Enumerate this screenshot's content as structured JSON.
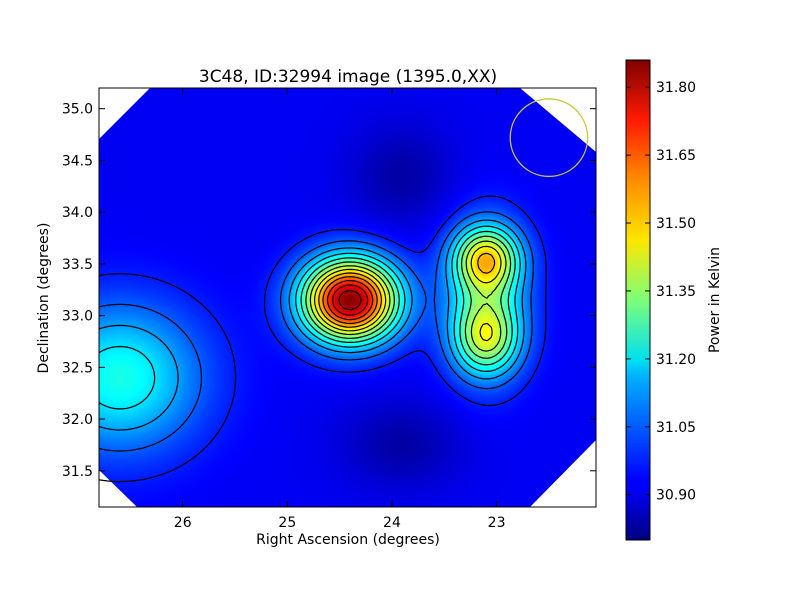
{
  "chart_data": {
    "type": "heatmap",
    "title": "3C48, ID:32994 image (1395.0,XX)",
    "xlabel": "Right Ascension (degrees)",
    "ylabel": "Declination (degrees)",
    "xlim": [
      26.8,
      22.05
    ],
    "ylim": [
      31.15,
      35.2
    ],
    "x_ticks": [
      26,
      25,
      24,
      23
    ],
    "x_tick_labels": [
      "26",
      "25",
      "24",
      "23"
    ],
    "y_ticks": [
      31.5,
      32.0,
      32.5,
      33.0,
      33.5,
      34.0,
      34.5,
      35.0
    ],
    "y_tick_labels": [
      "31.5",
      "32.0",
      "32.5",
      "33.0",
      "33.5",
      "34.0",
      "34.5",
      "35.0"
    ],
    "colorbar": {
      "label": "Power in Kelvin",
      "range": [
        30.8,
        31.86
      ],
      "ticks": [
        30.9,
        31.05,
        31.2,
        31.35,
        31.5,
        31.65,
        31.8
      ],
      "tick_labels": [
        "30.90",
        "31.05",
        "31.20",
        "31.35",
        "31.50",
        "31.65",
        "31.80"
      ],
      "colormap": "jet"
    },
    "features": [
      {
        "ra": 24.4,
        "dec": 33.15,
        "peak": 31.85
      },
      {
        "ra": 23.1,
        "dec": 33.58,
        "peak": 31.58
      },
      {
        "ra": 23.1,
        "dec": 32.75,
        "peak": 31.45
      },
      {
        "ra": 26.5,
        "dec": 32.45,
        "peak": 31.24
      }
    ],
    "beam": {
      "ra": 22.5,
      "dec": 34.72,
      "radius_deg": 0.37
    },
    "grid": false,
    "legend": "none"
  }
}
